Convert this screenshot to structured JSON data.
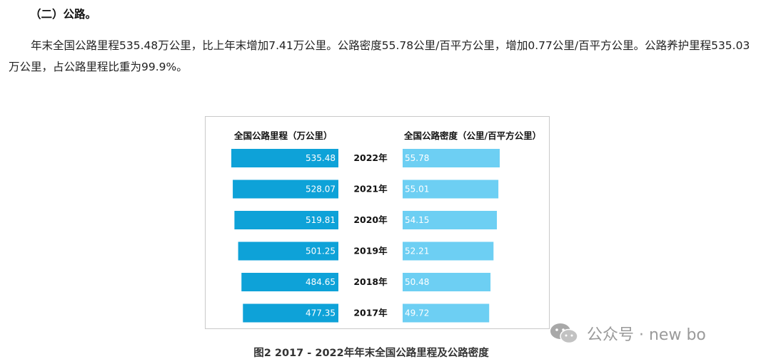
{
  "section": {
    "title": "（二）公路。"
  },
  "paragraph": "年末全国公路里程535.48万公里，比上年末增加7.41万公里。公路密度55.78公里/百平方公里，增加0.77公里/百平方公里。公路养护里程535.03万公里，占公路里程比重为99.9%。",
  "figure_caption": "图2   2017 - 2022年年末全国公路里程及公路密度",
  "watermark": {
    "text": "公众号 · new bo",
    "icon": "wechat-icon"
  },
  "colors": {
    "mileage_bar": "#0ea2d8",
    "density_bar": "#6dcff3",
    "bar_text": "#ffffff"
  },
  "chart_data": {
    "type": "bar",
    "orientation": "horizontal-butterfly",
    "categories": [
      "2022年",
      "2021年",
      "2020年",
      "2019年",
      "2018年",
      "2017年"
    ],
    "series": [
      {
        "name": "全国公路里程（万公里）",
        "values": [
          535.48,
          528.07,
          519.81,
          501.25,
          484.65,
          477.35
        ],
        "labels": [
          "535.48",
          "528.07",
          "519.81",
          "501.25",
          "484.65",
          "477.35"
        ]
      },
      {
        "name": "全国公路密度（公里/百平方公里）",
        "values": [
          55.78,
          55.01,
          54.15,
          52.21,
          50.48,
          49.72
        ],
        "labels": [
          "55.78",
          "55.01",
          "54.15",
          "52.21",
          "50.48",
          "49.72"
        ]
      }
    ],
    "grid": false
  }
}
